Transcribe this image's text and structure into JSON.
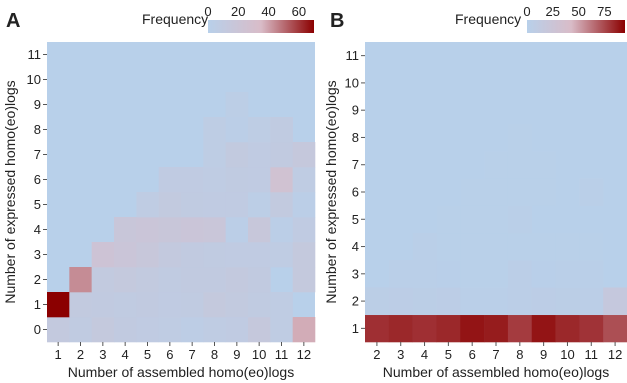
{
  "chart_data": [
    {
      "type": "heatmap",
      "panel_label": "A",
      "legend_title": "Frequency",
      "legend_ticks": [
        0,
        20,
        40,
        60
      ],
      "legend_range": [
        0,
        70
      ],
      "color_low": "#b8d0ea",
      "color_high": "#8b0000",
      "xlabel": "Number of assembled homo(eo)logs",
      "ylabel": "Number of expressed homo(eo)logs",
      "x": [
        1,
        2,
        3,
        4,
        5,
        6,
        7,
        8,
        9,
        10,
        11,
        12
      ],
      "y": [
        0,
        1,
        2,
        3,
        4,
        5,
        6,
        7,
        8,
        9,
        10,
        11
      ],
      "z": [
        [
          12,
          9,
          13,
          10,
          8,
          7,
          5,
          7,
          8,
          14,
          7,
          38
        ],
        [
          70,
          11,
          10,
          9,
          10,
          8,
          9,
          13,
          11,
          9,
          7,
          0
        ],
        [
          0,
          44,
          11,
          13,
          11,
          9,
          10,
          10,
          12,
          10,
          0,
          13
        ],
        [
          0,
          0,
          22,
          19,
          16,
          12,
          10,
          9,
          8,
          8,
          7,
          13
        ],
        [
          0,
          0,
          0,
          17,
          19,
          17,
          19,
          18,
          3,
          16,
          3,
          8
        ],
        [
          0,
          0,
          0,
          0,
          7,
          11,
          9,
          8,
          8,
          4,
          11,
          3
        ],
        [
          0,
          0,
          0,
          0,
          0,
          8,
          8,
          7,
          9,
          8,
          25,
          7
        ],
        [
          0,
          0,
          0,
          0,
          0,
          0,
          0,
          6,
          11,
          8,
          10,
          14
        ],
        [
          0,
          0,
          0,
          0,
          0,
          0,
          0,
          6,
          3,
          6,
          9,
          0
        ],
        [
          0,
          0,
          0,
          0,
          0,
          0,
          0,
          0,
          4,
          0,
          0,
          0
        ],
        [
          0,
          0,
          0,
          0,
          0,
          0,
          0,
          0,
          0,
          0,
          0,
          0
        ],
        [
          0,
          0,
          0,
          0,
          0,
          0,
          0,
          0,
          0,
          0,
          0,
          0
        ]
      ]
    },
    {
      "type": "heatmap",
      "panel_label": "B",
      "legend_title": "Frequency",
      "legend_ticks": [
        0,
        25,
        50,
        75
      ],
      "legend_range": [
        0,
        95
      ],
      "color_low": "#b8d0ea",
      "color_high": "#8b0000",
      "xlabel": "Number of assembled homo(eo)logs",
      "ylabel": "Number of expressed homo(eo)logs",
      "x": [
        2,
        3,
        4,
        5,
        6,
        7,
        8,
        9,
        10,
        11,
        12
      ],
      "y": [
        1,
        2,
        3,
        4,
        5,
        6,
        7,
        8,
        9,
        10,
        11
      ],
      "z": [
        [
          83,
          85,
          83,
          85,
          90,
          88,
          80,
          90,
          85,
          82,
          75
        ],
        [
          5,
          6,
          5,
          6,
          3,
          3,
          4,
          6,
          5,
          4,
          18
        ],
        [
          0,
          3,
          3,
          2,
          1,
          1,
          4,
          2,
          3,
          3,
          0
        ],
        [
          0,
          0,
          3,
          1,
          1,
          1,
          1,
          1,
          1,
          1,
          0
        ],
        [
          0,
          0,
          0,
          1,
          1,
          1,
          3,
          0,
          0,
          0,
          0
        ],
        [
          0,
          0,
          0,
          0,
          1,
          1,
          1,
          1,
          0,
          3,
          0
        ],
        [
          0,
          0,
          0,
          0,
          0,
          1,
          1,
          1,
          0,
          0,
          0
        ],
        [
          0,
          0,
          0,
          0,
          0,
          0,
          1,
          0,
          0,
          0,
          0
        ],
        [
          0,
          0,
          0,
          0,
          0,
          0,
          0,
          0,
          0,
          0,
          0
        ],
        [
          0,
          0,
          0,
          0,
          0,
          0,
          0,
          0,
          0,
          0,
          0
        ],
        [
          0,
          0,
          0,
          0,
          0,
          0,
          0,
          0,
          0,
          0,
          0
        ]
      ]
    }
  ]
}
